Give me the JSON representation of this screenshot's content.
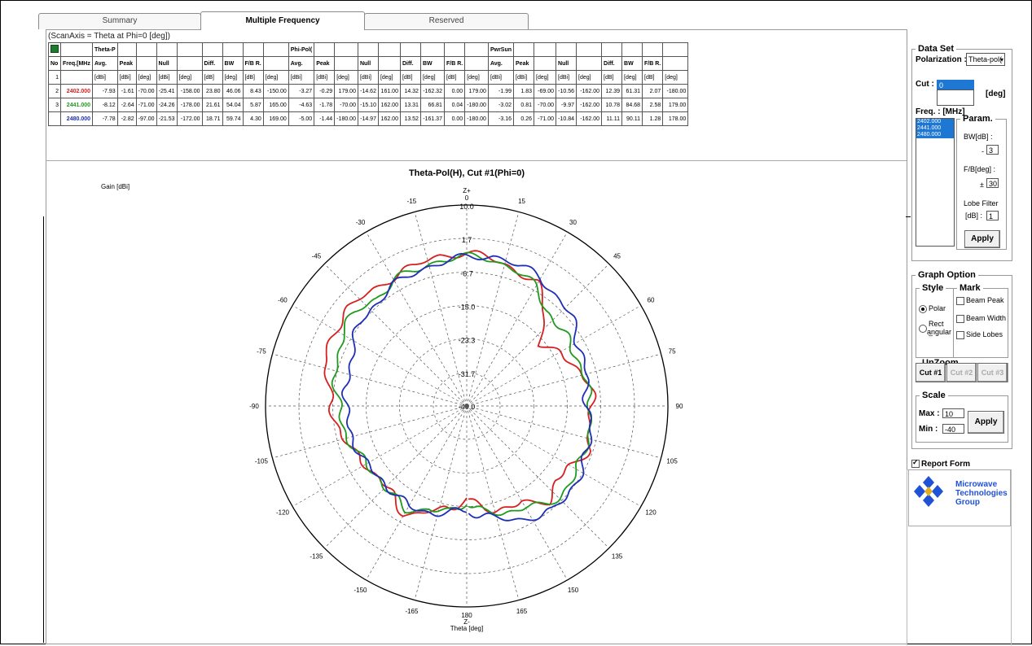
{
  "tabs": [
    {
      "label": "Summary"
    },
    {
      "label": "Multiple Frequency"
    },
    {
      "label": "Reserved"
    }
  ],
  "scan_axis": "(ScanAxis = Theta at Phi=0 [deg])",
  "table": {
    "group_headers": [
      "Theta-P",
      "Phi-Pol(",
      "PwrSun"
    ],
    "col_headers": [
      "No",
      "Freq.[MHz",
      "Avg.",
      "Peak",
      "",
      "Null",
      "",
      "Diff.",
      "BW",
      "F/B R.",
      "",
      "Avg.",
      "Peak",
      "",
      "Null",
      "",
      "Diff.",
      "BW",
      "F/B R.",
      "",
      "Avg.",
      "Peak",
      "",
      "Null",
      "",
      "Diff.",
      "BW",
      "F/B R.",
      ""
    ],
    "units_row": [
      "1",
      "",
      "[dBi]",
      "[dBi]",
      "[deg]",
      "[dBi]",
      "[deg]",
      "[dB]",
      "[deg]",
      "[dB]",
      "[deg]",
      "[dBi]",
      "[dBi]",
      "[deg]",
      "[dBi]",
      "[deg]",
      "[dB]",
      "[deg]",
      "[dB]",
      "[deg]",
      "[dBi]",
      "[dBi]",
      "[deg]",
      "[dBi]",
      "[deg]",
      "[dB]",
      "[deg]",
      "[dB]",
      "[deg]"
    ],
    "rows": [
      {
        "no": "2",
        "freq": "2402.000",
        "color": "#d62020",
        "cells": [
          "-7.93",
          "-1.61",
          "-70.00",
          "-25.41",
          "-158.00",
          "23.80",
          "46.06",
          "8.43",
          "-150.00",
          "-3.27",
          "-0.29",
          "179.00",
          "-14.62",
          "161.00",
          "14.32",
          "-162.32",
          "0.00",
          "179.00",
          "-1.99",
          "1.83",
          "-69.00",
          "-10.56",
          "-162.00",
          "12.39",
          "61.31",
          "2.07",
          "-180.00"
        ]
      },
      {
        "no": "3",
        "freq": "2441.000",
        "color": "#1f9a1f",
        "cells": [
          "-8.12",
          "-2.64",
          "-71.00",
          "-24.26",
          "-178.00",
          "21.61",
          "54.04",
          "5.87",
          "165.00",
          "-4.63",
          "-1.78",
          "-70.00",
          "-15.10",
          "162.00",
          "13.31",
          "66.81",
          "0.04",
          "-180.00",
          "-3.02",
          "0.81",
          "-70.00",
          "-9.97",
          "-162.00",
          "10.78",
          "84.68",
          "2.58",
          "179.00"
        ]
      },
      {
        "no": "",
        "freq": "2480.000",
        "color": "#1d2fb8",
        "cells": [
          "-7.78",
          "-2.82",
          "-97.00",
          "-21.53",
          "-172.00",
          "18.71",
          "59.74",
          "4.30",
          "169.00",
          "-5.00",
          "-1.44",
          "-180.00",
          "-14.97",
          "162.00",
          "13.52",
          "-161.37",
          "0.00",
          "-180.00",
          "-3.16",
          "0.26",
          "-71.00",
          "-10.84",
          "-162.00",
          "11.11",
          "90.11",
          "1.28",
          "178.00"
        ]
      }
    ]
  },
  "plot": {
    "gain_label": "Gain [dBi]",
    "title": "Theta-Pol(H), Cut #1(Phi=0)",
    "top_axis": [
      "Z+",
      "0"
    ],
    "bottom_axis": [
      "180",
      "Z-",
      "Theta [deg]"
    ],
    "ring_labels": [
      "10.0",
      "1.7",
      "-6.7",
      "-15.0",
      "-23.3",
      "-31.7",
      "-40.0"
    ],
    "angle_labels": {
      "15": "15",
      "30": "30",
      "45": "45",
      "60": "60",
      "75": "75",
      "90": "90",
      "105": "105",
      "120": "120",
      "135": "135",
      "150": "150",
      "165": "165",
      "-15": "-15",
      "-30": "-30",
      "-45": "-45",
      "-60": "-60",
      "-75": "-75",
      "-90": "-90",
      "-105": "-105",
      "-120": "-120",
      "-135": "-135",
      "-150": "-150",
      "-165": "-165"
    }
  },
  "chart_data": {
    "type": "polar",
    "title": "Theta-Pol(H), Cut #1(Phi=0)",
    "ylabel": "Gain [dBi]",
    "xlabel": "Theta [deg]",
    "rlim": [
      -40,
      10
    ],
    "grid": true,
    "series": [
      {
        "name": "2402.000",
        "color": "#d62020",
        "theta": [
          -180,
          -170,
          -160,
          -150,
          -140,
          -130,
          -120,
          -110,
          -100,
          -90,
          -80,
          -70,
          -60,
          -50,
          -40,
          -30,
          -20,
          -10,
          0,
          10,
          20,
          30,
          40,
          50,
          60,
          70,
          80,
          90,
          100,
          110,
          120,
          130,
          140,
          150,
          160,
          170,
          180
        ],
        "r": [
          -17,
          -14,
          -12,
          -9,
          -11,
          -12,
          -11,
          -9,
          -8,
          -6,
          -5,
          -3,
          -2,
          -2,
          -3,
          -3,
          -3,
          -2,
          -2,
          -3,
          -4,
          -5,
          -10,
          -16,
          -14,
          -11,
          -9,
          -9,
          -9,
          -8,
          -10,
          -11,
          -9,
          -12,
          -13,
          -14,
          -17
        ]
      },
      {
        "name": "2441.000",
        "color": "#1f9a1f",
        "theta": [
          -180,
          -170,
          -160,
          -150,
          -140,
          -130,
          -120,
          -110,
          -100,
          -90,
          -80,
          -70,
          -60,
          -50,
          -40,
          -30,
          -20,
          -10,
          0,
          10,
          20,
          30,
          40,
          50,
          60,
          70,
          80,
          90,
          100,
          110,
          120,
          130,
          140,
          150,
          160,
          170,
          180
        ],
        "r": [
          -16,
          -13,
          -13,
          -10,
          -11,
          -12,
          -11,
          -10,
          -9,
          -8,
          -7,
          -6,
          -4,
          -4,
          -5,
          -4,
          -4,
          -3,
          -3,
          -3,
          -4,
          -6,
          -9,
          -10,
          -10,
          -10,
          -10,
          -9,
          -9,
          -9,
          -8,
          -8,
          -8,
          -11,
          -12,
          -13,
          -16
        ]
      },
      {
        "name": "2480.000",
        "color": "#1d2fb8",
        "theta": [
          -180,
          -170,
          -160,
          -150,
          -140,
          -130,
          -120,
          -110,
          -100,
          -90,
          -80,
          -70,
          -60,
          -50,
          -40,
          -30,
          -20,
          -10,
          0,
          10,
          20,
          30,
          40,
          50,
          60,
          70,
          80,
          90,
          100,
          110,
          120,
          130,
          140,
          150,
          160,
          170,
          180
        ],
        "r": [
          -14,
          -13,
          -12,
          -11,
          -12,
          -12,
          -11,
          -11,
          -10,
          -10,
          -10,
          -9,
          -8,
          -6,
          -6,
          -5,
          -4,
          -4,
          -3,
          -2,
          -3,
          -3,
          -5,
          -6,
          -8,
          -9,
          -10,
          -10,
          -9,
          -8,
          -7,
          -7,
          -6,
          -8,
          -10,
          -12,
          -14
        ]
      }
    ]
  },
  "right_panel": {
    "data_set_title": "Data Set",
    "polarization_label": "Polarization :",
    "polarization_value": "Theta-pol(",
    "cut_label": "Cut :",
    "cut_value": "0",
    "cut_unit": "[deg]",
    "freq_label": "Freq. : [MHz]",
    "freq_items": [
      "2402.000",
      "2441.000",
      "2480.000"
    ],
    "param_title": "Param.",
    "bw_label": "BW[dB] :",
    "bw_sign": "-",
    "bw_value": "3",
    "fb_label": "F/B[deg] :",
    "fb_sign": "±",
    "fb_value": "30",
    "lobe_label": "Lobe Filter",
    "lobe_unit": "[dB] :",
    "lobe_value": "1",
    "apply1": "Apply",
    "graph_option_title": "Graph Option",
    "style_title": "Style",
    "mark_title": "Mark",
    "style_polar": "Polar",
    "style_rect1": "Rect _",
    "style_rect2": "angular",
    "mark_beam_peak": "Beam Peak",
    "mark_beam_width": "Beam Width",
    "mark_side_lobes": "Side Lobes",
    "unzoom_title": "UnZoom",
    "cut1": "Cut #1",
    "cut2": "Cut #2",
    "cut3": "Cut #3",
    "scale_title": "Scale",
    "max_label": "Max :",
    "max_value": "10",
    "min_label": "Min :",
    "min_value": "-40",
    "apply2": "Apply",
    "report_form": "Report Form",
    "logo_text": [
      "Microwave",
      "Technologies",
      "Group"
    ]
  }
}
